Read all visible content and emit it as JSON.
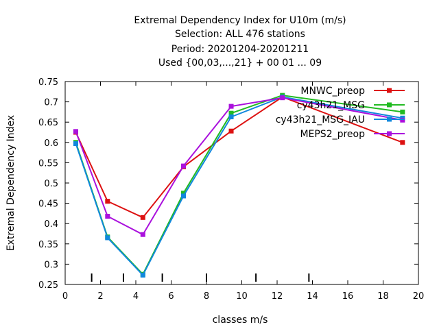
{
  "chart_data": {
    "type": "line",
    "title_lines": [
      "Extremal Dependency Index  for U10m (m/s)",
      "Selection: ALL    476 stations",
      "Period: 20201204-20201211",
      "Used {00,03,...,21} + 00 01 ... 09"
    ],
    "xlabel": "classes m/s",
    "ylabel": "Extremal Dependency Index",
    "xlim": [
      0,
      20
    ],
    "ylim": [
      0.25,
      0.75
    ],
    "x_ticks": [
      0,
      2,
      4,
      6,
      8,
      10,
      12,
      14,
      16,
      18,
      20
    ],
    "x_tick_labels": [
      "0",
      "2",
      "4",
      "6",
      "8",
      "10",
      "12",
      "14",
      "16",
      "18",
      "20"
    ],
    "y_ticks": [
      0.25,
      0.3,
      0.35,
      0.4,
      0.45,
      0.5,
      0.55,
      0.6,
      0.65,
      0.7,
      0.75
    ],
    "y_tick_labels": [
      "0.25",
      "0.3",
      "0.35",
      "0.4",
      "0.45",
      "0.5",
      "0.55",
      "0.6",
      "0.65",
      "0.7",
      "0.75"
    ],
    "class_bounds": [
      1.5,
      3.3,
      5.5,
      8.0,
      10.8,
      13.8
    ],
    "legend_placement": "top-right",
    "grid": false,
    "x": [
      0.6,
      2.4,
      4.4,
      6.7,
      9.4,
      12.3,
      19.1
    ],
    "series": [
      {
        "name": "MNWC_preop",
        "color": "#dd1111",
        "values": [
          0.625,
          0.455,
          0.415,
          0.54,
          0.628,
          0.712,
          0.6
        ]
      },
      {
        "name": "cy43h21_MSG",
        "color": "#22bb22",
        "values": [
          0.6,
          0.367,
          0.275,
          0.475,
          0.672,
          0.716,
          0.675
        ]
      },
      {
        "name": "cy43h21_MSG_IAU",
        "color": "#1188dd",
        "values": [
          0.597,
          0.365,
          0.273,
          0.468,
          0.663,
          0.712,
          0.66
        ]
      },
      {
        "name": "MEPS2_preop",
        "color": "#aa11dd",
        "values": [
          0.627,
          0.418,
          0.373,
          0.542,
          0.689,
          0.71,
          0.655
        ]
      }
    ]
  }
}
